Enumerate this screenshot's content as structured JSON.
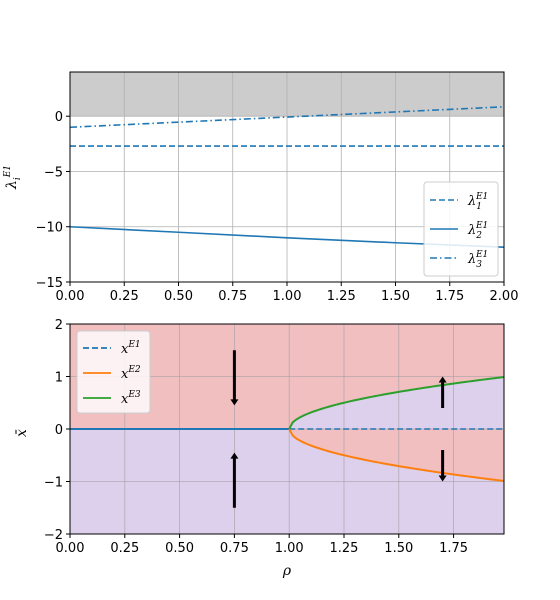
{
  "chart_data": [
    {
      "type": "line",
      "title": "",
      "xlabel": "",
      "ylabel": "λ_i^{E1}",
      "xlim": [
        0,
        2
      ],
      "ylim": [
        -15,
        4
      ],
      "xticks": [
        0,
        0.25,
        0.5,
        0.75,
        1,
        1.25,
        1.5,
        1.75,
        2
      ],
      "xtick_labels": [
        "0.00",
        "0.25",
        "0.50",
        "0.75",
        "1.00",
        "1.25",
        "1.50",
        "1.75",
        "2.00"
      ],
      "yticks": [
        0,
        -5,
        -10,
        -15
      ],
      "ytick_labels": [
        "0",
        "−5",
        "−10",
        "−15"
      ],
      "grid": true,
      "legend_position": "lower-right",
      "shaded_region": {
        "y_from": 0,
        "y_to": 4,
        "color": "#cccccc"
      },
      "series": [
        {
          "name": "λ1",
          "sup": "E1",
          "style": "dashed",
          "color": "#1f77b4",
          "x": [
            0,
            2
          ],
          "y": [
            -2.7,
            -2.7
          ]
        },
        {
          "name": "λ2",
          "sup": "E1",
          "style": "solid",
          "color": "#1f77b4",
          "x": [
            0,
            0.5,
            1,
            1.5,
            2
          ],
          "y": [
            -10,
            -10.5,
            -11,
            -11.45,
            -11.85
          ]
        },
        {
          "name": "λ3",
          "sup": "E1",
          "style": "dashdot",
          "color": "#1f77b4",
          "x": [
            0,
            2
          ],
          "y": [
            -1,
            0.85
          ]
        }
      ]
    },
    {
      "type": "line",
      "title": "",
      "xlabel": "ρ",
      "ylabel": "x̄",
      "xlim": [
        0,
        1.98
      ],
      "ylim": [
        -2,
        2
      ],
      "xticks": [
        0,
        0.25,
        0.5,
        0.75,
        1,
        1.25,
        1.5,
        1.75
      ],
      "xtick_labels": [
        "0.00",
        "0.25",
        "0.50",
        "0.75",
        "1.00",
        "1.25",
        "1.50",
        "1.75"
      ],
      "yticks": [
        2,
        1,
        0,
        -1,
        -2
      ],
      "ytick_labels": [
        "2",
        "1",
        "0",
        "−1",
        "−2"
      ],
      "grid": true,
      "legend_position": "upper-left",
      "regions_color": {
        "red": "#f2bfc0",
        "purple": "#ddd0ec"
      },
      "series": [
        {
          "name": "x",
          "sup": "E1",
          "style": "solid-then-dashed",
          "color": "#1f77b4",
          "x": [
            0,
            1.98
          ],
          "y": [
            0,
            0
          ]
        },
        {
          "name": "x",
          "sup": "E2",
          "style": "solid",
          "color": "#ff7f0e",
          "formula": "-sqrt(rho-1)",
          "x": [
            1.0,
            1.05,
            1.2,
            1.4,
            1.6,
            1.8,
            1.98
          ],
          "y": [
            0,
            -0.22,
            -0.45,
            -0.63,
            -0.77,
            -0.89,
            -0.99
          ]
        },
        {
          "name": "x",
          "sup": "E3",
          "style": "solid",
          "color": "#2ca02c",
          "formula": "sqrt(rho-1)",
          "x": [
            1.0,
            1.05,
            1.2,
            1.4,
            1.6,
            1.8,
            1.98
          ],
          "y": [
            0,
            0.22,
            0.45,
            0.63,
            0.77,
            0.89,
            0.99
          ]
        }
      ],
      "arrows": [
        {
          "x": 0.75,
          "from": 1.5,
          "to": 0.45
        },
        {
          "x": 0.75,
          "from": -1.5,
          "to": -0.45
        },
        {
          "x": 1.7,
          "from": 0.4,
          "to": 1.0
        },
        {
          "x": 1.7,
          "from": -0.4,
          "to": -1.0
        }
      ]
    }
  ]
}
